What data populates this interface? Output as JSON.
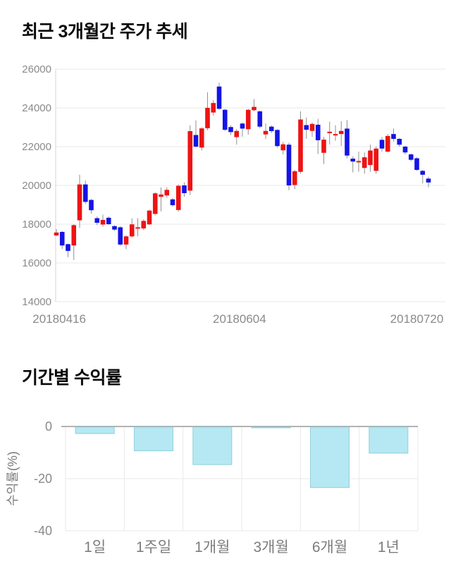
{
  "colors": {
    "up": "#ee1313",
    "down": "#1414e6",
    "wick": "#909090",
    "grid": "#e9e9e9",
    "axis_line": "#d5d5d5",
    "axis_text": "#8a8a8a",
    "bar_fill": "#b5e8f2",
    "bar_stroke": "#93cfdc",
    "zero_line": "#9a9a9a",
    "title_text": "#0a0a0a"
  },
  "chart_data": [
    {
      "type": "candlestick",
      "title": "최근 3개월간 주가 추세",
      "ylim": [
        14000,
        26000
      ],
      "y_ticks": [
        26000,
        24000,
        22000,
        20000,
        18000,
        16000,
        14000
      ],
      "x_tick_labels": [
        "20180416",
        "20180604",
        "20180720"
      ],
      "grid": true,
      "candles_format": "[open, high, low, close]",
      "candles": [
        [
          17420,
          17740,
          17380,
          17570
        ],
        [
          17600,
          17650,
          16720,
          16900
        ],
        [
          16970,
          17000,
          16300,
          16620
        ],
        [
          16900,
          18000,
          16150,
          17950
        ],
        [
          18200,
          20550,
          17800,
          20050
        ],
        [
          20050,
          20250,
          19050,
          19150
        ],
        [
          19250,
          19300,
          18550,
          18720
        ],
        [
          18310,
          18400,
          17950,
          18070
        ],
        [
          17980,
          18490,
          17870,
          18220
        ],
        [
          18330,
          18400,
          17950,
          18000
        ],
        [
          17900,
          17950,
          17650,
          17720
        ],
        [
          17840,
          17900,
          16880,
          16950
        ],
        [
          16950,
          17420,
          16720,
          17370
        ],
        [
          17370,
          18300,
          17300,
          17990
        ],
        [
          17840,
          18310,
          17370,
          17840
        ],
        [
          17780,
          18250,
          17700,
          18170
        ],
        [
          17990,
          18750,
          17950,
          18700
        ],
        [
          18530,
          19650,
          18450,
          19590
        ],
        [
          19410,
          19900,
          18660,
          19530
        ],
        [
          19480,
          19900,
          19350,
          19770
        ],
        [
          19280,
          19350,
          18900,
          18980
        ],
        [
          18730,
          20050,
          18650,
          19980
        ],
        [
          20000,
          20150,
          19420,
          19600
        ],
        [
          19730,
          23100,
          19500,
          22800
        ],
        [
          22600,
          23350,
          21950,
          22000
        ],
        [
          21950,
          23000,
          21800,
          22940
        ],
        [
          22950,
          24800,
          22850,
          24000
        ],
        [
          23760,
          24400,
          23600,
          24250
        ],
        [
          25100,
          25300,
          23900,
          23950
        ],
        [
          23900,
          23950,
          22800,
          22870
        ],
        [
          23010,
          23100,
          22600,
          22750
        ],
        [
          22490,
          22900,
          22100,
          22810
        ],
        [
          23190,
          23250,
          22510,
          22930
        ],
        [
          22900,
          23950,
          22620,
          23900
        ],
        [
          23880,
          24450,
          23820,
          24050
        ],
        [
          23820,
          23870,
          22950,
          23030
        ],
        [
          22630,
          23200,
          22400,
          22810
        ],
        [
          23030,
          23100,
          22700,
          22800
        ],
        [
          22860,
          22900,
          21950,
          22030
        ],
        [
          21810,
          22250,
          21600,
          22120
        ],
        [
          22100,
          22200,
          19750,
          20000
        ],
        [
          20020,
          20800,
          19800,
          20730
        ],
        [
          20700,
          23820,
          20600,
          23400
        ],
        [
          23110,
          23500,
          22400,
          22870
        ],
        [
          22810,
          23250,
          22500,
          23170
        ],
        [
          23130,
          23430,
          21620,
          22330
        ],
        [
          21680,
          22500,
          21100,
          22360
        ],
        [
          22770,
          23290,
          22100,
          22770
        ],
        [
          22650,
          23100,
          22300,
          22650
        ],
        [
          22650,
          23310,
          22040,
          22810
        ],
        [
          22930,
          23370,
          21400,
          21540
        ],
        [
          21380,
          21500,
          20670,
          21230
        ],
        [
          21260,
          21740,
          20700,
          21260
        ],
        [
          20900,
          21700,
          20600,
          21450
        ],
        [
          21050,
          22100,
          20700,
          21800
        ],
        [
          20750,
          22000,
          20600,
          21900
        ],
        [
          22350,
          22500,
          21750,
          21900
        ],
        [
          21740,
          22650,
          21700,
          22550
        ],
        [
          22650,
          22930,
          22250,
          22400
        ],
        [
          22400,
          22450,
          22000,
          22100
        ],
        [
          22000,
          22050,
          21600,
          21700
        ],
        [
          21600,
          21650,
          21250,
          21320
        ],
        [
          21400,
          21450,
          20750,
          20800
        ],
        [
          20750,
          20800,
          20100,
          20550
        ],
        [
          20350,
          20450,
          19900,
          20150
        ]
      ]
    },
    {
      "type": "bar",
      "title": "기간별 수익률",
      "categories": [
        "1일",
        "1주일",
        "1개월",
        "3개월",
        "6개월",
        "1년"
      ],
      "values": [
        -2.5,
        -9.1,
        -14.4,
        -0.3,
        -23.2,
        -10.0
      ],
      "ylabel": "수익률(%)",
      "xlabel": "",
      "y_ticks": [
        0,
        -20,
        -40
      ],
      "ylim": [
        -40,
        0
      ],
      "grid": true,
      "legend": "none"
    }
  ]
}
